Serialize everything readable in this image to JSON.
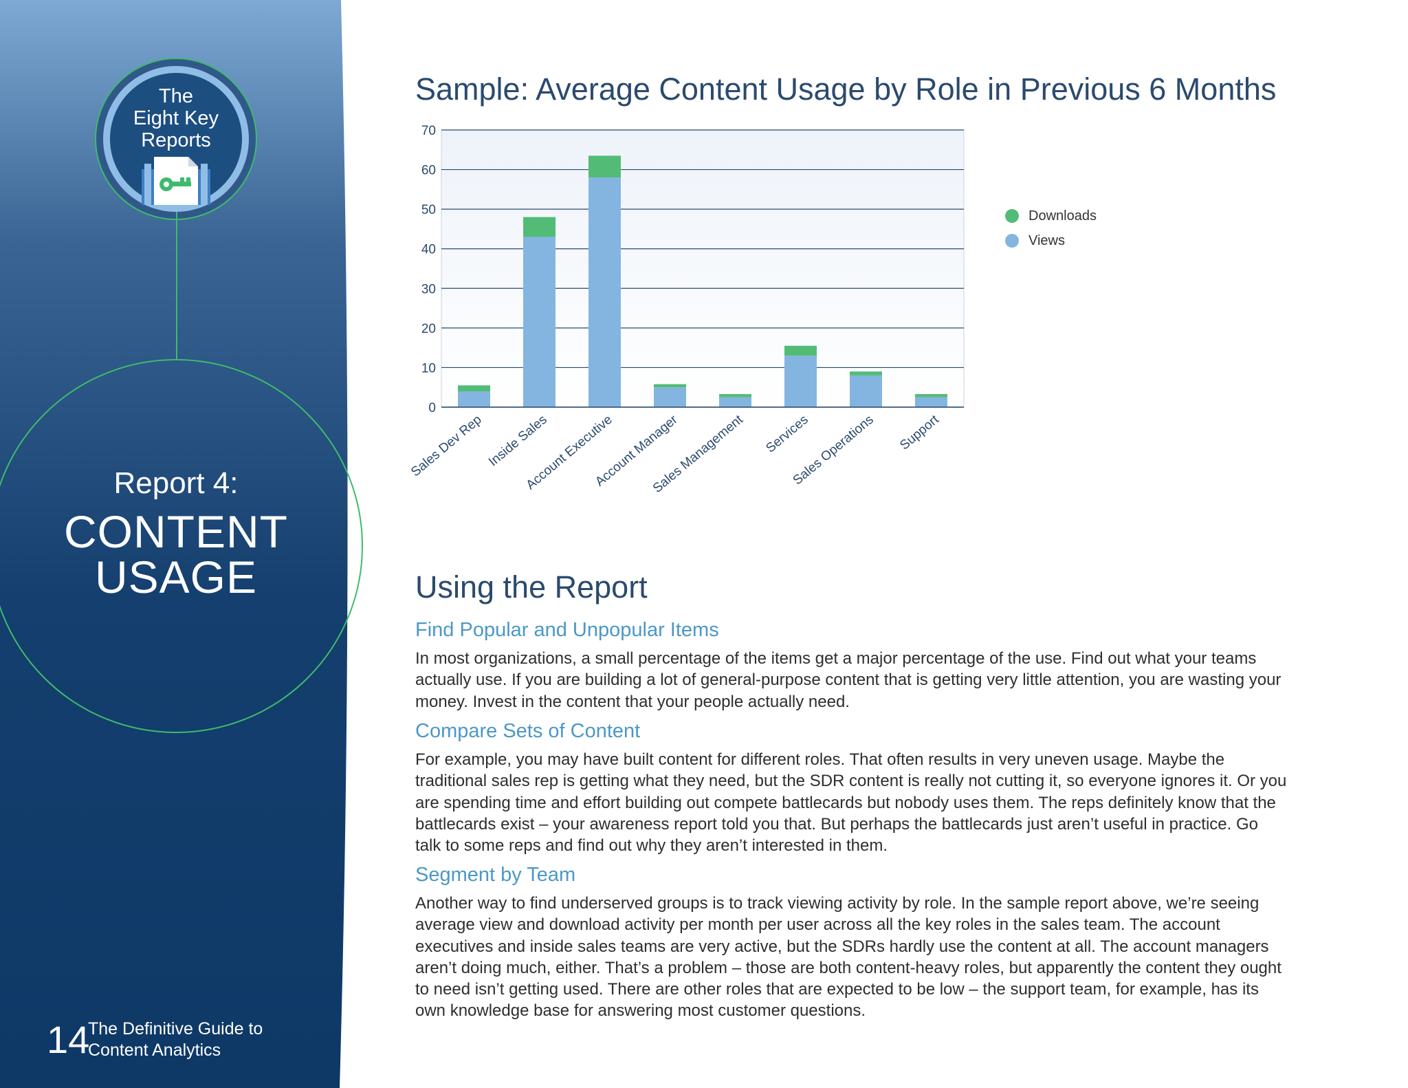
{
  "colors": {
    "sidebar_top": "#7ea9d4",
    "sidebar_bottom": "#0e3866",
    "accent_green": "#3fba6e",
    "views_blue": "#84b5e1",
    "downloads_green": "#52bc77",
    "heading": "#2b4a6e",
    "subheading": "#4b98c6"
  },
  "sidebar": {
    "badge_lines": [
      "The",
      "Eight Key",
      "Reports"
    ],
    "badge_icon": "key-document-icon",
    "report_label": "Report 4:",
    "report_title_lines": [
      "CONTENT",
      "USAGE"
    ],
    "page_number": "14",
    "guide_title_lines": [
      "The Definitive Guide to",
      "Content Analytics"
    ]
  },
  "chart_data": {
    "type": "bar",
    "stacked": true,
    "title": "Sample: Average Content Usage by Role in Previous 6 Months",
    "categories": [
      "Sales Dev Rep",
      "Inside Sales",
      "Account Executive",
      "Account Manager",
      "Sales Management",
      "Services",
      "Sales Operations",
      "Support"
    ],
    "series": [
      {
        "name": "Views",
        "color": "#84b5e1",
        "values": [
          4,
          43,
          58,
          5,
          2.5,
          13,
          8,
          2.5
        ]
      },
      {
        "name": "Downloads",
        "color": "#52bc77",
        "values": [
          1.5,
          5,
          5.5,
          0.8,
          0.8,
          2.5,
          1,
          0.8
        ]
      }
    ],
    "legend_order": [
      "Downloads",
      "Views"
    ],
    "legend_position": "right",
    "ylim": [
      0,
      70
    ],
    "yticks": [
      "0",
      "10",
      "20",
      "30",
      "40",
      "50",
      "60",
      "70"
    ],
    "grid": true,
    "xlabel": "",
    "ylabel": ""
  },
  "main": {
    "section_title": "Using the Report",
    "sections": [
      {
        "heading": "Find Popular and Unpopular Items",
        "lines": [
          "In most organizations, a small percentage of the items get a major percentage of the use. Find out what your teams",
          "actually use. If you are building a lot of general-purpose content that is getting very little attention, you are wasting your",
          "money. Invest in the content that your people actually need."
        ]
      },
      {
        "heading": "Compare Sets of Content",
        "lines": [
          "For example, you may have built content for different roles. That often results in very uneven usage. Maybe the",
          "traditional sales rep is getting what they need, but the SDR content is really not cutting it, so everyone ignores it. Or you",
          "are spending time and effort building out compete battlecards but nobody uses them. The reps definitely know that the",
          "battlecards exist – your awareness report told you that. But perhaps the battlecards just aren’t useful in practice. Go",
          "talk to some reps and find out why they aren’t interested in them."
        ]
      },
      {
        "heading": "Segment by Team",
        "lines": [
          "Another way to find underserved groups is to track viewing activity by role. In the sample report above, we’re seeing",
          "average view and download activity per month per user across all the key roles in the sales team. The account",
          "executives and inside sales teams are very active, but the SDRs hardly use the content at all. The account managers",
          "aren’t doing much, either. That’s a problem – those are both content-heavy roles, but apparently the content they ought",
          "to need isn’t getting used. There are other roles that are expected to be low – the support team, for example, has its",
          "own knowledge base for answering most customer questions."
        ]
      }
    ]
  }
}
